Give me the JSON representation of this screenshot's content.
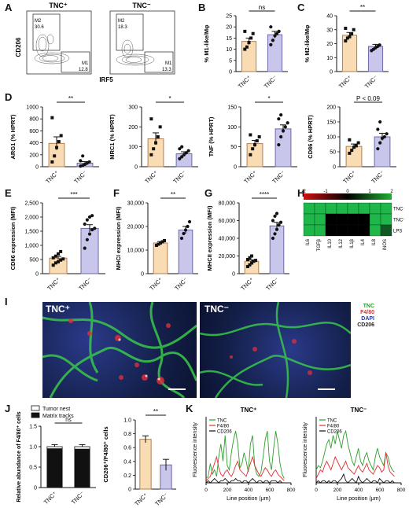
{
  "panel_labels": {
    "A": "A",
    "B": "B",
    "C": "C",
    "D": "D",
    "E": "E",
    "F": "F",
    "G": "G",
    "H": "H",
    "I": "I",
    "J": "J",
    "K": "K"
  },
  "colors": {
    "tnc_pos": "#f9dcb4",
    "tnc_neg": "#c8c6ea",
    "tnc_pos_edge": "#b08050",
    "tnc_neg_edge": "#6b68a8",
    "tnc_line": "#2e9e2e",
    "f480_line": "#e03030",
    "cd206_line": "#111111"
  },
  "flow": {
    "plots": [
      {
        "title": "TNC⁺",
        "m2_label": "M2",
        "m2_value": "30.6",
        "m1_label": "M1",
        "m1_value": "12.8"
      },
      {
        "title": "TNC⁻",
        "m2_label": "M2",
        "m2_value": "18.3",
        "m1_label": "M1",
        "m1_value": "13.3"
      }
    ],
    "ylabel": "CD206",
    "xlabel": "IRF5"
  },
  "chart_data": [
    {
      "id": "B",
      "type": "bar",
      "categories": [
        "TNC⁺",
        "TNC⁻"
      ],
      "values": [
        13.5,
        16.5
      ],
      "errors": [
        1.5,
        1.5
      ],
      "points": [
        [
          10,
          11,
          13,
          15,
          17,
          18
        ],
        [
          12,
          14,
          16,
          17,
          18,
          20
        ]
      ],
      "ylabel": "% M1-like/Mφ",
      "ylim": [
        0,
        25
      ],
      "yticks": [
        0,
        5,
        10,
        15,
        20,
        25
      ],
      "sig": "ns"
    },
    {
      "id": "C",
      "type": "bar",
      "categories": [
        "TNC⁺",
        "TNC⁻"
      ],
      "values": [
        26,
        18
      ],
      "errors": [
        2,
        1.5
      ],
      "points": [
        [
          22,
          24,
          25,
          27,
          30,
          31
        ],
        [
          15,
          16,
          17,
          18,
          19
        ]
      ],
      "ylabel": "% M2-like/Mφ",
      "ylim": [
        0,
        40
      ],
      "yticks": [
        0,
        10,
        20,
        30,
        40
      ],
      "sig": "**"
    },
    {
      "id": "D1",
      "type": "bar",
      "categories": [
        "TNC⁺",
        "TNC⁻"
      ],
      "values": [
        390,
        60
      ],
      "errors": [
        110,
        25
      ],
      "points": [
        [
          80,
          180,
          320,
          420,
          520,
          820
        ],
        [
          10,
          20,
          40,
          60,
          80,
          100,
          180
        ]
      ],
      "ylabel": "ARG1 (% HPRT)",
      "ylim": [
        0,
        1000
      ],
      "yticks": [
        0,
        200,
        400,
        600,
        800,
        1000
      ],
      "sig": "**"
    },
    {
      "id": "D2",
      "type": "bar",
      "categories": [
        "TNC⁺",
        "TNC⁻"
      ],
      "values": [
        140,
        65
      ],
      "errors": [
        30,
        10
      ],
      "points": [
        [
          60,
          90,
          120,
          150,
          200,
          240
        ],
        [
          40,
          50,
          60,
          70,
          80,
          90,
          100
        ]
      ],
      "ylabel": "MRC1 (% HPRT)",
      "ylim": [
        0,
        300
      ],
      "yticks": [
        0,
        100,
        200,
        300
      ],
      "sig": "*"
    },
    {
      "id": "D3",
      "type": "bar",
      "categories": [
        "TNC⁺",
        "TNC⁻"
      ],
      "values": [
        58,
        95
      ],
      "errors": [
        8,
        10
      ],
      "points": [
        [
          30,
          45,
          55,
          65,
          75,
          80
        ],
        [
          55,
          75,
          90,
          100,
          110,
          120,
          130
        ]
      ],
      "ylabel": "TNF (% HPRT)",
      "ylim": [
        0,
        150
      ],
      "yticks": [
        0,
        50,
        100,
        150
      ],
      "sig": "*"
    },
    {
      "id": "D4",
      "type": "bar",
      "categories": [
        "TNC⁺",
        "TNC⁻"
      ],
      "values": [
        68,
        100
      ],
      "errors": [
        8,
        12
      ],
      "points": [
        [
          45,
          55,
          65,
          70,
          80,
          90
        ],
        [
          60,
          80,
          95,
          100,
          110,
          125,
          150
        ]
      ],
      "ylabel": "CD86 (% HPRT)",
      "ylim": [
        0,
        200
      ],
      "yticks": [
        0,
        50,
        100,
        150,
        200
      ],
      "sig": "P < 0.09"
    },
    {
      "id": "E",
      "type": "bar",
      "categories": [
        "TNC⁺",
        "TNC⁻"
      ],
      "values": [
        550,
        1600
      ],
      "errors": [
        60,
        130
      ],
      "points": [
        [
          300,
          380,
          420,
          480,
          520,
          560,
          620,
          700,
          780
        ],
        [
          900,
          1200,
          1400,
          1550,
          1600,
          1750,
          1900,
          2000,
          2050
        ]
      ],
      "ylabel": "CD86 expression (MFI)",
      "ylim": [
        0,
        2500
      ],
      "yticks": [
        0,
        500,
        1000,
        1500,
        2000,
        2500
      ],
      "yticklabels": [
        "0",
        "500",
        "1,000",
        "1,500",
        "2,000",
        "2,500"
      ],
      "sig": "***"
    },
    {
      "id": "F",
      "type": "bar",
      "categories": [
        "TNC⁺",
        "TNC⁻"
      ],
      "values": [
        13000,
        18500
      ],
      "errors": [
        600,
        1500
      ],
      "points": [
        [
          12000,
          12500,
          13000,
          13500,
          14000
        ],
        [
          15000,
          17000,
          18500,
          20000,
          22000
        ]
      ],
      "ylabel": "MHCI expression (MFI)",
      "ylim": [
        0,
        30000
      ],
      "yticks": [
        0,
        10000,
        20000,
        30000
      ],
      "yticklabels": [
        "0",
        "10,000",
        "20,000",
        "30,000"
      ],
      "sig": "**"
    },
    {
      "id": "G",
      "type": "bar",
      "categories": [
        "TNC⁺",
        "TNC⁻"
      ],
      "values": [
        14000,
        54000
      ],
      "errors": [
        1500,
        4000
      ],
      "points": [
        [
          8000,
          10000,
          12000,
          14000,
          15000,
          16000,
          18000,
          20000
        ],
        [
          40000,
          45000,
          50000,
          55000,
          58000,
          60000,
          65000,
          68000
        ]
      ],
      "ylabel": "MHCII expression (MFI)",
      "ylim": [
        0,
        80000
      ],
      "yticks": [
        0,
        20000,
        40000,
        60000,
        80000
      ],
      "yticklabels": [
        "0",
        "20,000",
        "40,000",
        "60,000",
        "80,000"
      ],
      "sig": "****"
    },
    {
      "id": "H",
      "type": "heatmap",
      "columns": [
        "IL6",
        "TGFβ",
        "IL10",
        "IL12",
        "IL1β",
        "IL4",
        "IL8",
        "iNOS"
      ],
      "rows": [
        "TNC⁻",
        "TNC⁺",
        "LPS"
      ],
      "scale_ticks": [
        "-2",
        "-1",
        "0",
        "1",
        "2"
      ],
      "values": [
        [
          1,
          1,
          1,
          1,
          1,
          1,
          1,
          1
        ],
        [
          1,
          1,
          0,
          0,
          0,
          0,
          1,
          1
        ],
        [
          1,
          1,
          0,
          0,
          0,
          0,
          1,
          0.5
        ]
      ]
    },
    {
      "id": "J1",
      "type": "stacked_bar",
      "categories": [
        "TNC⁺",
        "TNC⁻"
      ],
      "series": [
        {
          "name": "Tumor nest",
          "values": [
            0.05,
            0.06
          ]
        },
        {
          "name": "Matrix tracks",
          "values": [
            0.95,
            0.94
          ]
        }
      ],
      "errors": [
        0.05,
        0.05
      ],
      "ylabel": "Relative abundance of F4/80⁺ cells",
      "ylim": [
        0,
        1.5
      ],
      "yticks": [
        0,
        0.5,
        1.0,
        1.5
      ],
      "yticklabels": [
        "0",
        "0.5",
        "1.0",
        "1.5"
      ],
      "sig": "ns"
    },
    {
      "id": "J2",
      "type": "bar",
      "categories": [
        "TNC⁺",
        "TNC⁻"
      ],
      "values": [
        0.72,
        0.35
      ],
      "errors": [
        0.05,
        0.08
      ],
      "points": [
        [],
        []
      ],
      "ylabel": "CD206⁺/F4/80⁺ cells",
      "ylim": [
        0,
        1.0
      ],
      "yticks": [
        0,
        0.2,
        0.4,
        0.6,
        0.8,
        1.0
      ],
      "yticklabels": [
        "0",
        "0.2",
        "0.4",
        "0.6",
        "0.8",
        "1.0"
      ],
      "sig": "**"
    },
    {
      "id": "K1",
      "type": "line",
      "title": "TNC⁺",
      "xlabel": "Line position (μm)",
      "ylabel": "Fluorescence intensity",
      "xlim": [
        0,
        800
      ],
      "xticks": [
        0,
        200,
        400,
        600,
        800
      ],
      "series": [
        {
          "name": "TNC",
          "values": [
            2,
            3,
            9,
            4,
            6,
            3,
            12,
            18,
            10,
            22,
            8,
            6,
            14,
            20,
            24,
            18,
            7,
            9,
            14,
            10,
            5,
            18,
            22,
            8,
            4,
            3,
            5,
            12,
            20,
            24,
            10,
            6,
            16,
            24,
            18,
            9,
            4,
            2
          ]
        },
        {
          "name": "F4/80",
          "values": [
            1,
            2,
            3,
            6,
            9,
            12,
            7,
            4,
            3,
            5,
            6,
            4,
            3,
            5,
            8,
            10,
            6,
            5,
            4,
            3,
            6,
            9,
            12,
            8,
            6,
            4,
            3,
            5,
            7,
            6,
            4,
            3,
            5,
            6,
            4,
            3,
            2,
            1
          ]
        },
        {
          "name": "CD206",
          "values": [
            0,
            1,
            0,
            1,
            2,
            1,
            0,
            1,
            1,
            2,
            1,
            0,
            1,
            1,
            2,
            1,
            1,
            0,
            1,
            1,
            0,
            1,
            2,
            1,
            0,
            1,
            1,
            0,
            1,
            1,
            0,
            1,
            1,
            1,
            0,
            1,
            0,
            0
          ]
        }
      ]
    },
    {
      "id": "K2",
      "type": "line",
      "title": "TNC⁻",
      "xlabel": "Line position (μm)",
      "ylabel": "Fluorescence intensity",
      "xlim": [
        0,
        800
      ],
      "xticks": [
        0,
        200,
        400,
        600,
        800
      ],
      "series": [
        {
          "name": "TNC",
          "values": [
            6,
            8,
            7,
            10,
            14,
            18,
            20,
            16,
            22,
            18,
            24,
            20,
            16,
            22,
            24,
            18,
            14,
            10,
            8,
            12,
            16,
            10,
            8,
            12,
            14,
            10,
            8,
            6,
            12,
            16,
            12,
            10,
            8,
            14,
            12,
            8,
            6,
            5
          ]
        },
        {
          "name": "F4/80",
          "values": [
            2,
            4,
            6,
            5,
            8,
            10,
            8,
            6,
            9,
            12,
            10,
            8,
            6,
            8,
            10,
            7,
            6,
            5,
            4,
            6,
            8,
            6,
            5,
            7,
            9,
            6,
            5,
            4,
            6,
            8,
            7,
            5,
            6,
            14,
            8,
            5,
            4,
            3
          ]
        },
        {
          "name": "CD206",
          "values": [
            0,
            1,
            0,
            1,
            1,
            0,
            1,
            0,
            1,
            1,
            0,
            1,
            2,
            4,
            1,
            0,
            1,
            2,
            1,
            0,
            3,
            1,
            0,
            1,
            2,
            1,
            0,
            1,
            1,
            0,
            2,
            1,
            0,
            1,
            1,
            0,
            1,
            0
          ]
        }
      ]
    }
  ],
  "micro": {
    "left": {
      "title": "TNC⁺"
    },
    "right": {
      "title": "TNC⁻",
      "legend": [
        "TNC",
        "F4/80",
        "DAPI",
        "CD206"
      ]
    }
  }
}
